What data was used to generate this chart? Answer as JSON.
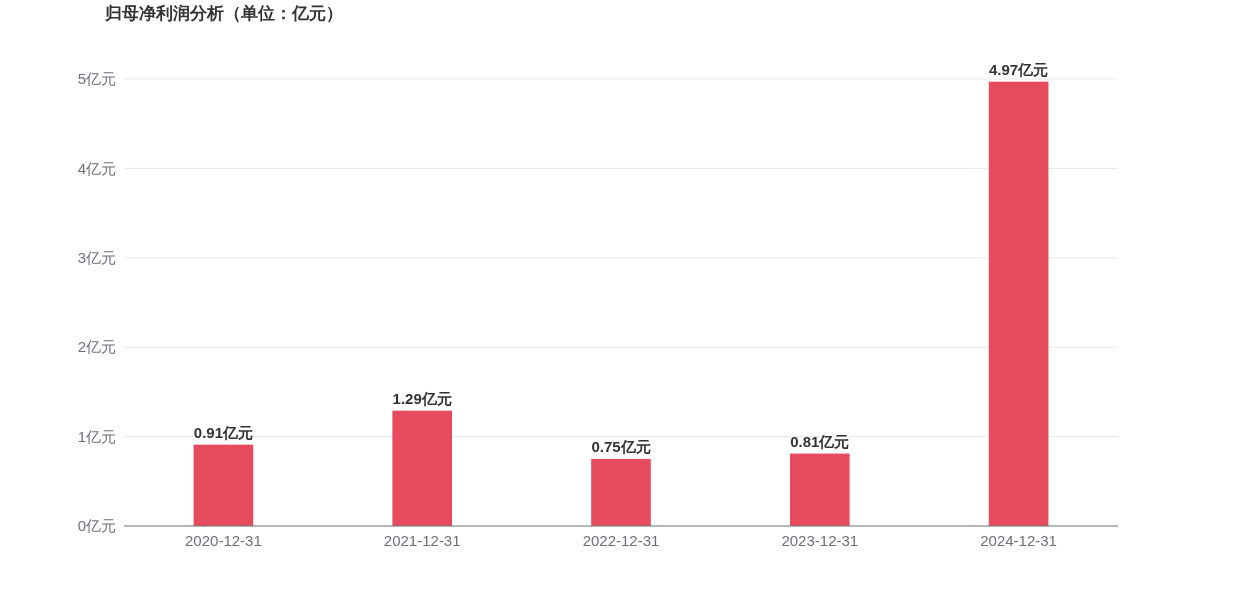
{
  "chart_data": {
    "type": "bar",
    "title": "归母净利润分析（单位：亿元）",
    "categories": [
      "2020-12-31",
      "2021-12-31",
      "2022-12-31",
      "2023-12-31",
      "2024-12-31"
    ],
    "values": [
      0.91,
      1.29,
      0.75,
      0.81,
      4.97
    ],
    "color": "#e64b5e",
    "value_labels": [
      "0.91亿元",
      "1.29亿元",
      "0.75亿元",
      "0.81亿元",
      "4.97亿元"
    ],
    "ylim": [
      0,
      5
    ],
    "yticks": [
      {
        "value": 0,
        "label": "0亿元"
      },
      {
        "value": 1,
        "label": "1亿元"
      },
      {
        "value": 2,
        "label": "2亿元"
      },
      {
        "value": 3,
        "label": "3亿元"
      },
      {
        "value": 4,
        "label": "4亿元"
      },
      {
        "value": 5,
        "label": "5亿元"
      }
    ],
    "grid": "y"
  }
}
